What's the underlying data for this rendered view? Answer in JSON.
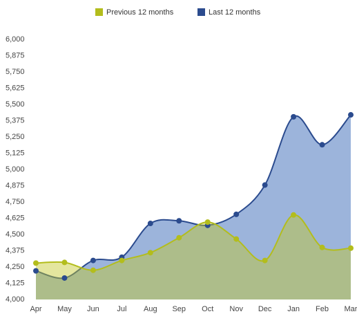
{
  "chart_data": {
    "type": "area",
    "categories": [
      "Apr",
      "May",
      "Jun",
      "Jul",
      "Aug",
      "Sep",
      "Oct",
      "Nov",
      "Dec",
      "Jan",
      "Feb",
      "Mar"
    ],
    "series": [
      {
        "name": "Last 12 months",
        "color": "#2b4b8e",
        "area_color": "#9cb4db",
        "values": [
          4220,
          4165,
          4300,
          4325,
          4585,
          4605,
          4570,
          4655,
          4880,
          5405,
          5190,
          5420
        ]
      },
      {
        "name": "Previous 12 months",
        "color": "#b3bd1c",
        "area_color": "rgba(196,200,40,0.45)",
        "values": [
          4280,
          4285,
          4225,
          4300,
          4360,
          4475,
          4595,
          4465,
          4300,
          4650,
          4400,
          4395
        ]
      }
    ],
    "legend_order": [
      1,
      0
    ],
    "ylim": [
      4000,
      6000
    ],
    "yticks": [
      {
        "value": 4000,
        "label": "4,000"
      },
      {
        "value": 4125,
        "label": "4,125"
      },
      {
        "value": 4250,
        "label": "4,250"
      },
      {
        "value": 4375,
        "label": "4,375"
      },
      {
        "value": 4500,
        "label": "4,500"
      },
      {
        "value": 4625,
        "label": "4,625"
      },
      {
        "value": 4750,
        "label": "4,750"
      },
      {
        "value": 4875,
        "label": "4,875"
      },
      {
        "value": 5000,
        "label": "5,000"
      },
      {
        "value": 5125,
        "label": "5,125"
      },
      {
        "value": 5250,
        "label": "5,250"
      },
      {
        "value": 5375,
        "label": "5,375"
      },
      {
        "value": 5500,
        "label": "5,500"
      },
      {
        "value": 5625,
        "label": "5,625"
      },
      {
        "value": 5750,
        "label": "5,750"
      },
      {
        "value": 5875,
        "label": "5,875"
      },
      {
        "value": 6000,
        "label": "6,000"
      }
    ],
    "grid": false
  }
}
